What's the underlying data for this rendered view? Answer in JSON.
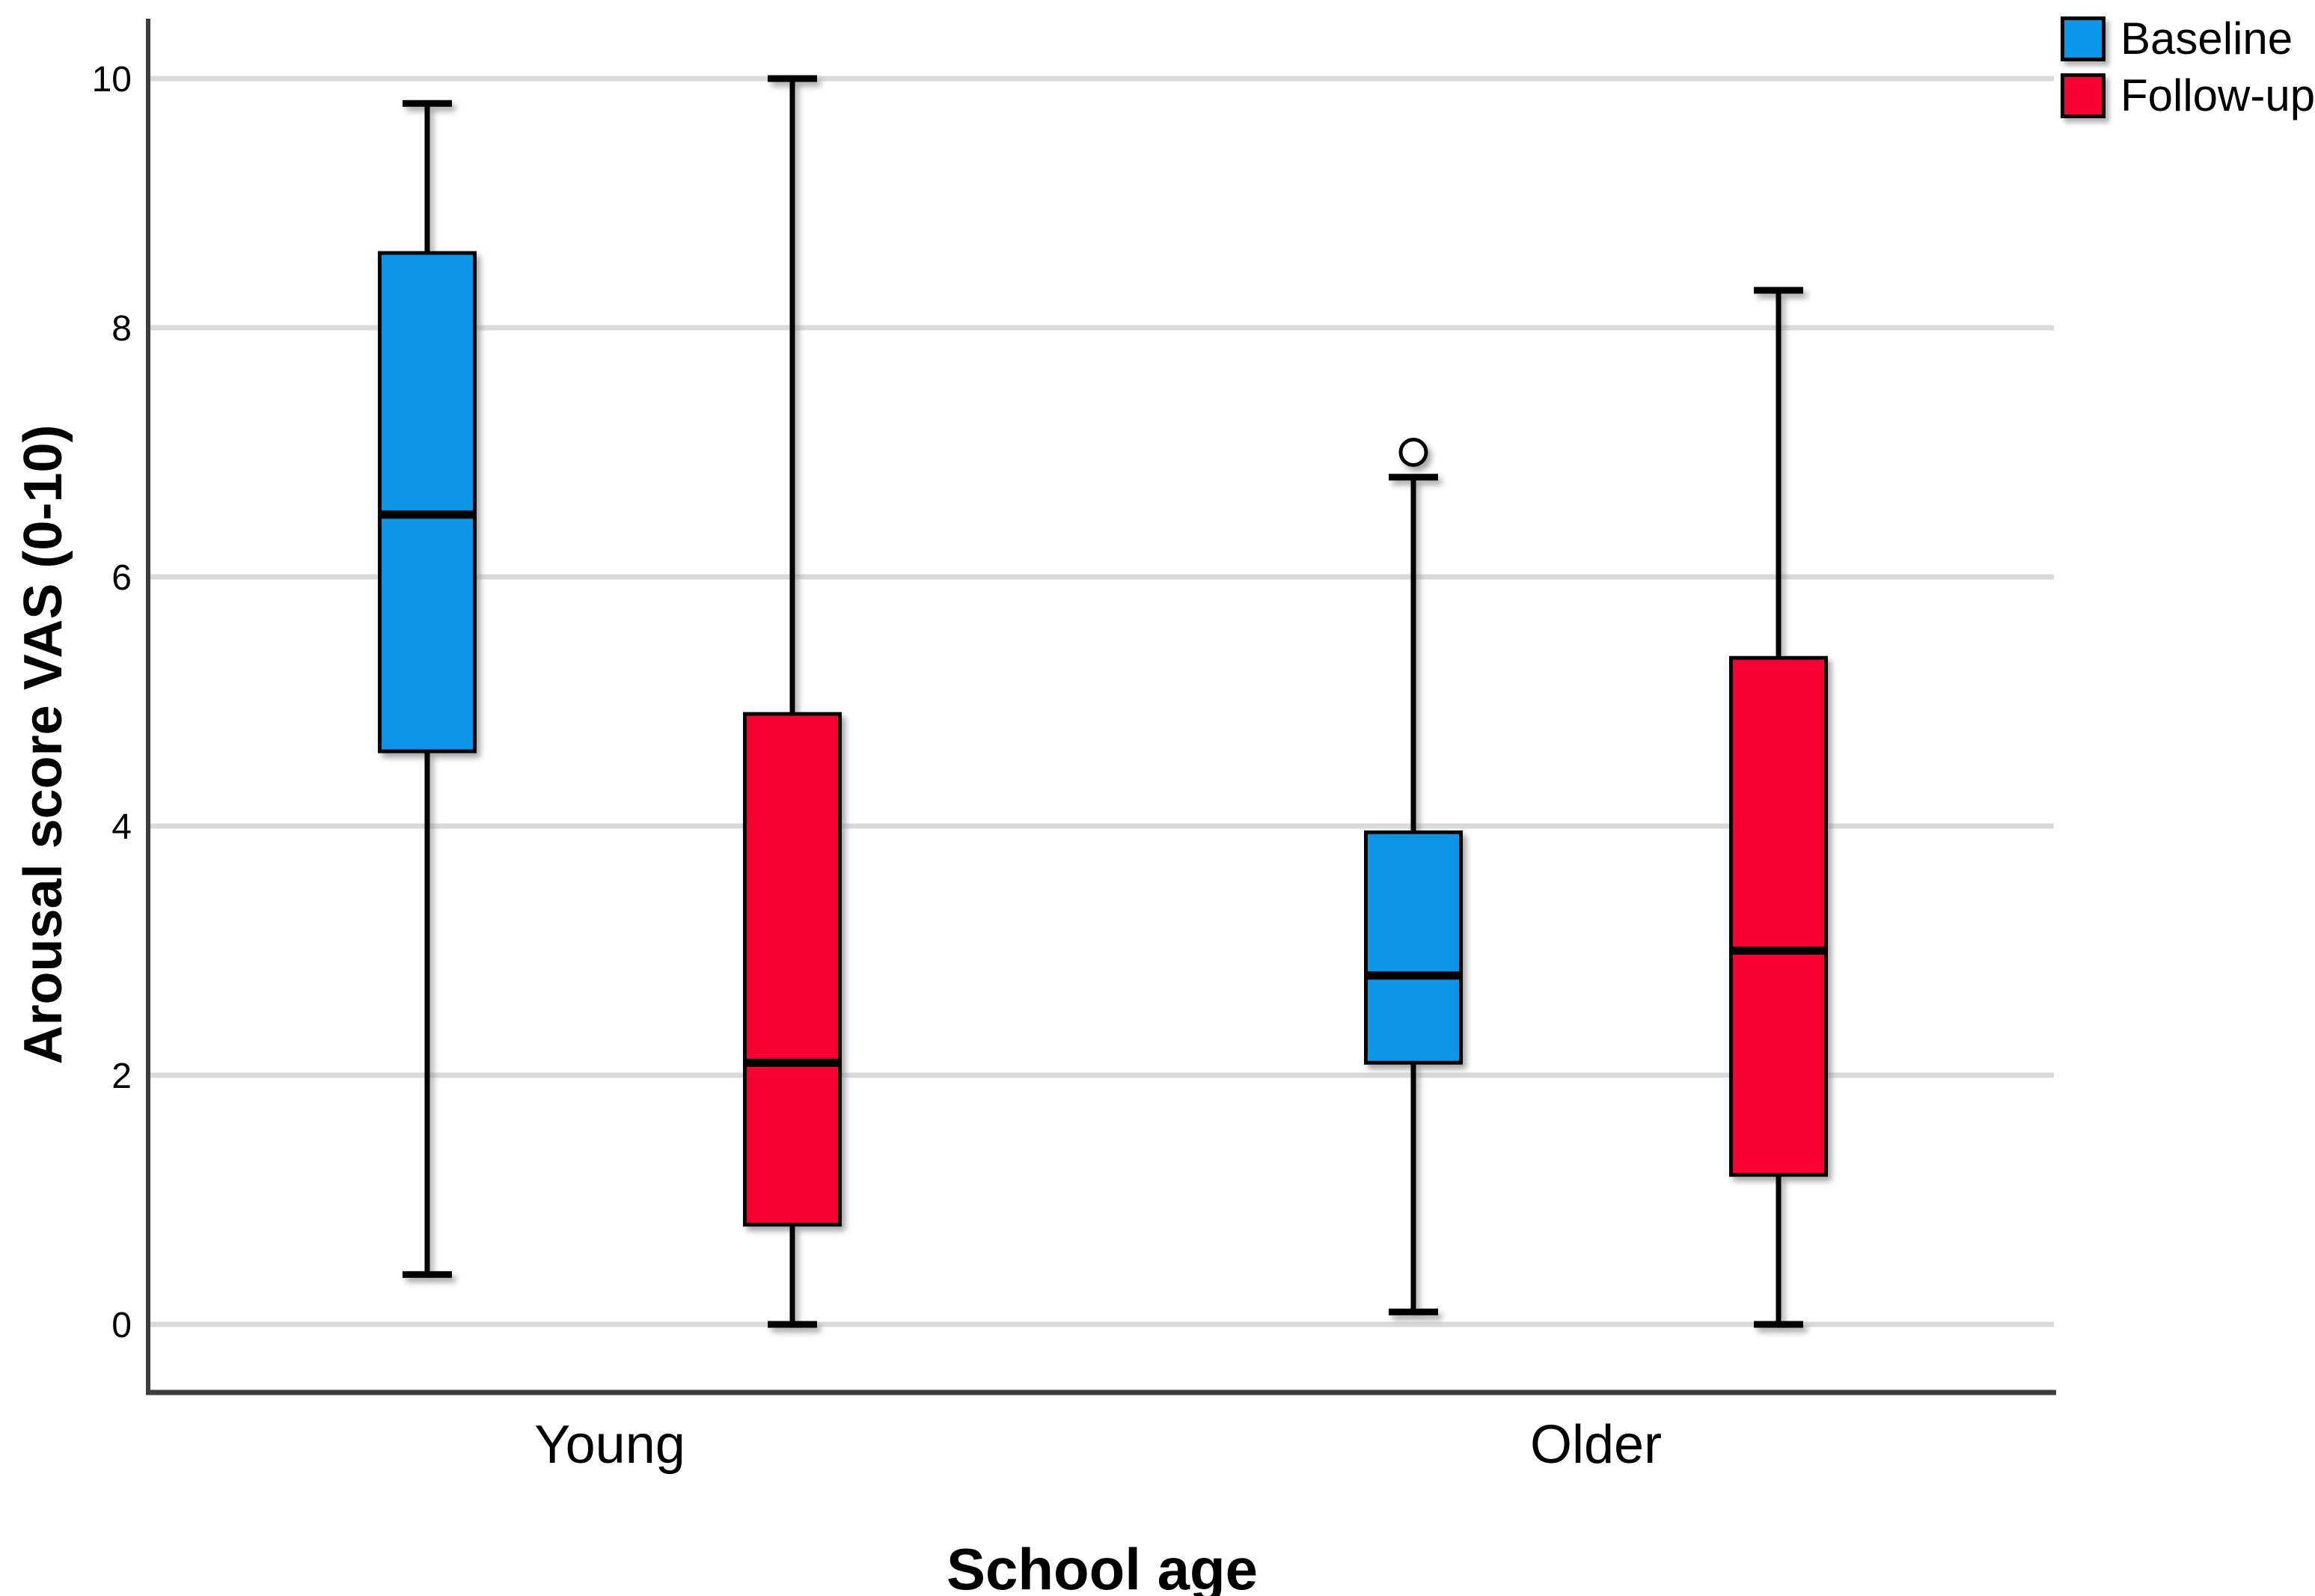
{
  "chart_data": {
    "type": "boxplot",
    "title": "",
    "xlabel": "School age",
    "ylabel": "Arousal score VAS (0-10)",
    "categories": [
      "Young",
      "Older"
    ],
    "yticks": [
      0,
      2,
      4,
      6,
      8,
      10
    ],
    "ylim": [
      0,
      10
    ],
    "grid": true,
    "legend_position": "top-right",
    "series": [
      {
        "name": "Baseline",
        "color": "#0995E8",
        "boxes": [
          {
            "category": "Young",
            "whisker_low": 0.4,
            "q1": 4.6,
            "median": 6.5,
            "q3": 8.6,
            "whisker_high": 9.8,
            "outliers": []
          },
          {
            "category": "Older",
            "whisker_low": 0.1,
            "q1": 2.1,
            "median": 2.8,
            "q3": 3.95,
            "whisker_high": 6.8,
            "outliers": [
              7.0
            ]
          }
        ]
      },
      {
        "name": "Follow-up",
        "color": "#F80031",
        "boxes": [
          {
            "category": "Young",
            "whisker_low": 0.0,
            "q1": 0.8,
            "median": 2.1,
            "q3": 4.9,
            "whisker_high": 10.0,
            "outliers": []
          },
          {
            "category": "Older",
            "whisker_low": 0.0,
            "q1": 1.2,
            "median": 3.0,
            "q3": 5.35,
            "whisker_high": 8.3,
            "outliers": []
          }
        ]
      }
    ]
  }
}
